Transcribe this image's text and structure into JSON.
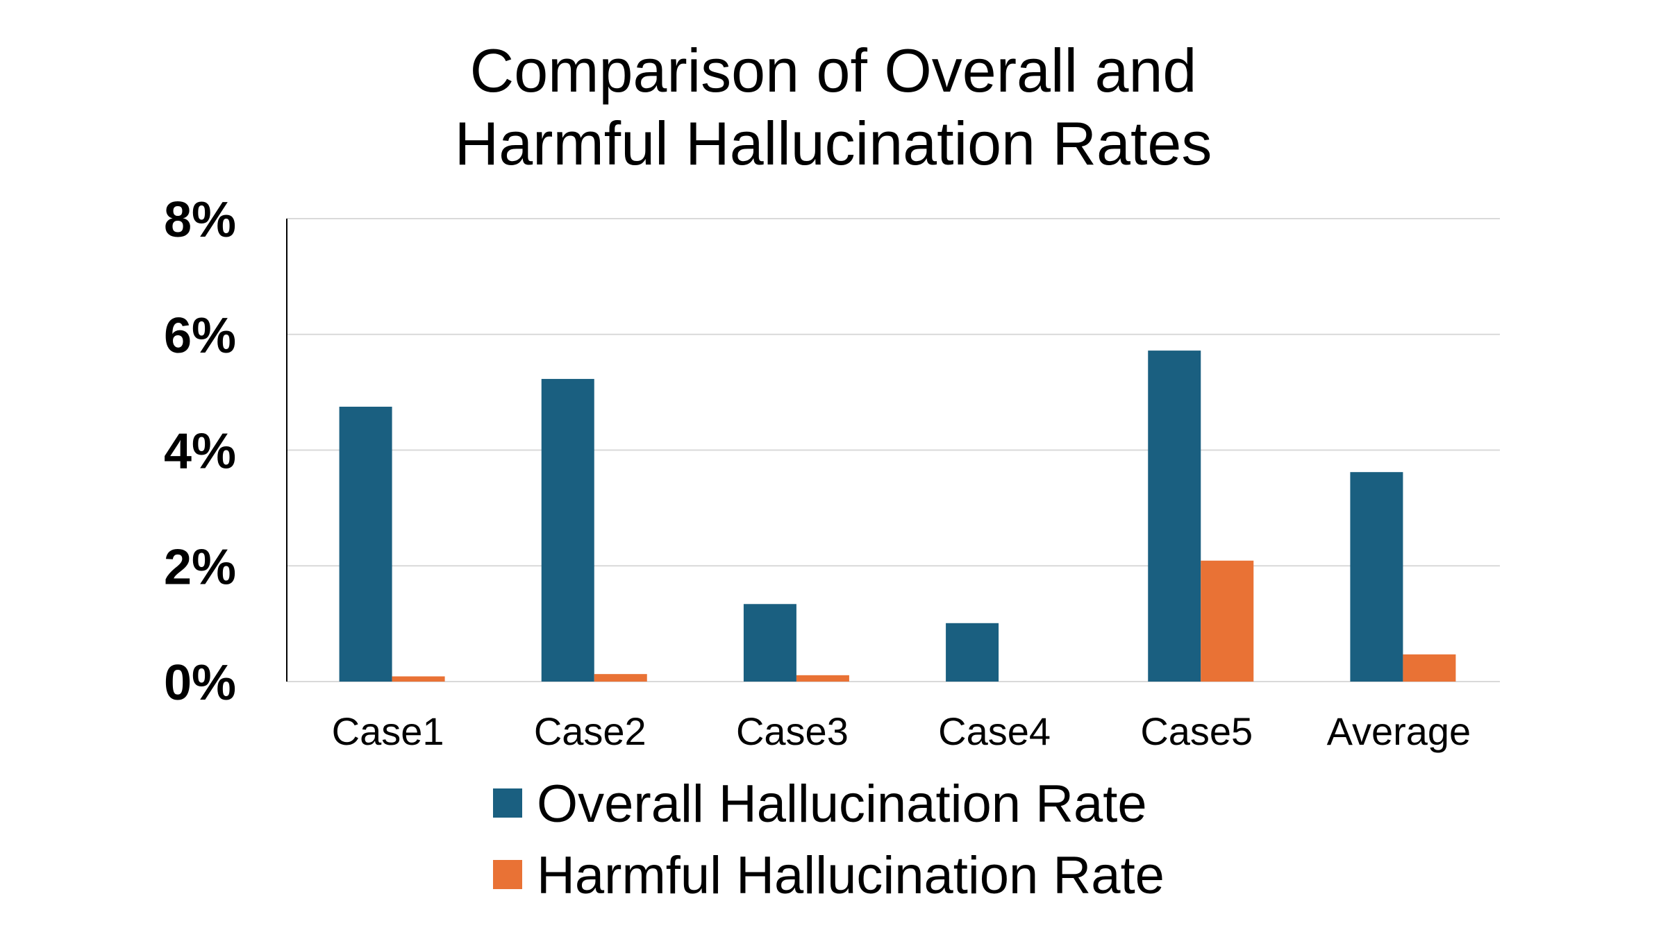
{
  "chart_data": {
    "type": "bar",
    "title": [
      "Comparison of Overall and",
      "Harmful Hallucination Rates"
    ],
    "xlabel": "",
    "ylabel": "",
    "ylim": [
      0,
      8
    ],
    "y_ticks": [
      0,
      2,
      4,
      6,
      8
    ],
    "y_tick_labels": [
      "0%",
      "2%",
      "4%",
      "6%",
      "8%"
    ],
    "grid": true,
    "legend_position": "bottom",
    "categories": [
      "Case1",
      "Case2",
      "Case3",
      "Case4",
      "Case5",
      "Average"
    ],
    "series": [
      {
        "name": "Overall Hallucination Rate",
        "color": "#1a5f80",
        "values": [
          4.75,
          5.23,
          1.34,
          1.01,
          5.72,
          3.62
        ]
      },
      {
        "name": "Harmful Hallucination Rate",
        "color": "#e97235",
        "values": [
          0.09,
          0.13,
          0.11,
          0.0,
          2.09,
          0.47
        ]
      }
    ]
  }
}
